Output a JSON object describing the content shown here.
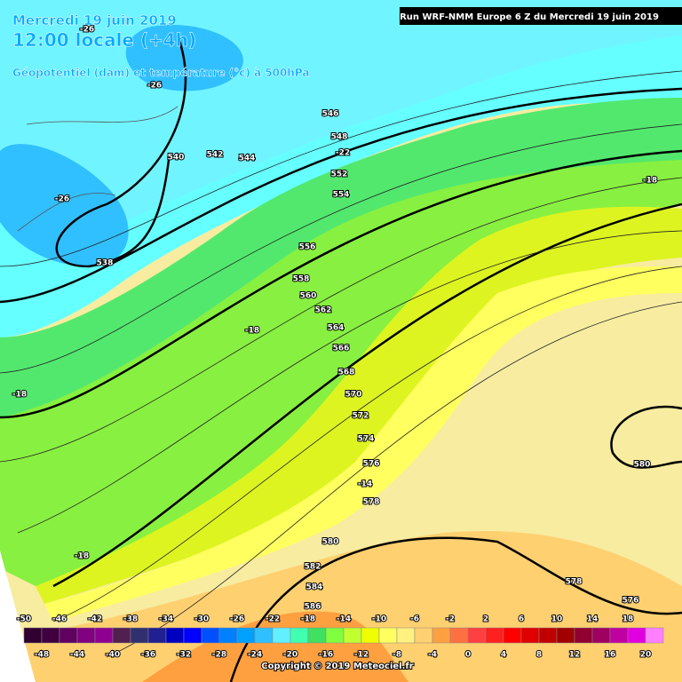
{
  "header": {
    "date": "Mercredi 19 juin 2019",
    "time": "12:00 locale (+4h)",
    "subtitle": "Géopotentiel (dam) et température (°c) à 500hPa",
    "run": "Run WRF-NMM Europe 6 Z du Mercredi 19 juin 2019"
  },
  "contour_labels": [
    "546",
    "548",
    "552",
    "554",
    "556",
    "558",
    "560",
    "562",
    "564",
    "566",
    "568",
    "570",
    "572",
    "574",
    "576",
    "578",
    "580",
    "582",
    "584",
    "586",
    "540",
    "542",
    "544",
    "538",
    "580",
    "578",
    "576"
  ],
  "temperature_labels": [
    "-26",
    "-26",
    "-26",
    "-22",
    "-18",
    "-18",
    "-18",
    "-18",
    "-14"
  ],
  "scale": {
    "top_labels": [
      -50,
      -46,
      -42,
      -38,
      -34,
      -30,
      -26,
      -22,
      -18,
      -14,
      -10,
      -6,
      -2,
      2,
      6,
      10,
      14,
      18
    ],
    "bottom_labels": [
      -48,
      -44,
      -40,
      -36,
      -32,
      -28,
      -24,
      -20,
      -16,
      -12,
      -8,
      -4,
      0,
      4,
      8,
      12,
      16,
      20
    ],
    "colors": [
      "#300030",
      "#400040",
      "#600060",
      "#800080",
      "#900090",
      "#502050",
      "#303070",
      "#202090",
      "#0000c0",
      "#0000ff",
      "#0050ff",
      "#0080ff",
      "#00a0ff",
      "#30c0ff",
      "#60f0ff",
      "#40ffb0",
      "#40e060",
      "#80ff40",
      "#c0ff30",
      "#f0ff00",
      "#ffff60",
      "#fff080",
      "#ffd070",
      "#ffa040",
      "#ff7040",
      "#ff4040",
      "#ff2020",
      "#ff0000",
      "#e00000",
      "#c00000",
      "#a00000",
      "#900030",
      "#a00060",
      "#c000a0",
      "#e000e0",
      "#ff80ff"
    ]
  },
  "copyright": "Copyright © 2019 Meteociel.fr"
}
